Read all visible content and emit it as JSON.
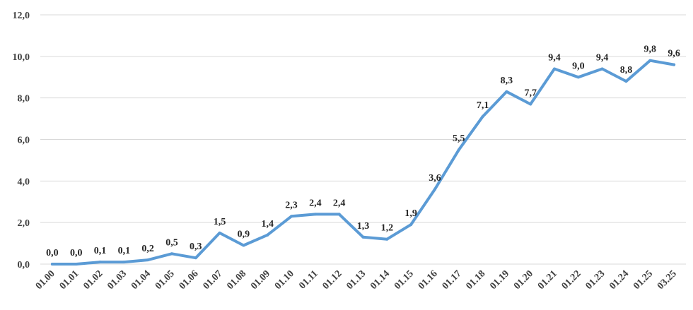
{
  "chart_data": {
    "type": "line",
    "title": "",
    "xlabel": "",
    "ylabel": "",
    "ylim": [
      0,
      12
    ],
    "y_ticks": [
      "0,0",
      "2,0",
      "4,0",
      "6,0",
      "8,0",
      "10,0",
      "12,0"
    ],
    "grid": true,
    "legend": "none",
    "colors": {
      "series": "#5b9bd5",
      "grid": "#d9d9d9"
    },
    "categories": [
      "01.00",
      "01.01",
      "01.02",
      "01.03",
      "01.04",
      "01.05",
      "01.06",
      "01.07",
      "01.08",
      "01.09",
      "01.10",
      "01.11",
      "01.12",
      "01.13",
      "01.14",
      "01.15",
      "01.16",
      "01.17",
      "01.18",
      "01.19",
      "01.20",
      "01.21",
      "01.22",
      "01.23",
      "01.24",
      "01.25",
      "03.25"
    ],
    "series": [
      {
        "values": [
          0.0,
          0.0,
          0.1,
          0.1,
          0.2,
          0.5,
          0.3,
          1.5,
          0.9,
          1.4,
          2.3,
          2.4,
          2.4,
          1.3,
          1.2,
          1.9,
          3.6,
          5.5,
          7.1,
          8.3,
          7.7,
          9.4,
          9.0,
          9.4,
          8.8,
          9.8,
          9.6
        ],
        "labels": [
          "0,0",
          "0,0",
          "0,1",
          "0,1",
          "0,2",
          "0,5",
          "0,3",
          "1,5",
          "0,9",
          "1,4",
          "2,3",
          "2,4",
          "2,4",
          "1,3",
          "1,2",
          "1,9",
          "3,6",
          "5,5",
          "7,1",
          "8,3",
          "7,7",
          "9,4",
          "9,0",
          "9,4",
          "8,8",
          "9,8",
          "9,6"
        ]
      }
    ]
  }
}
